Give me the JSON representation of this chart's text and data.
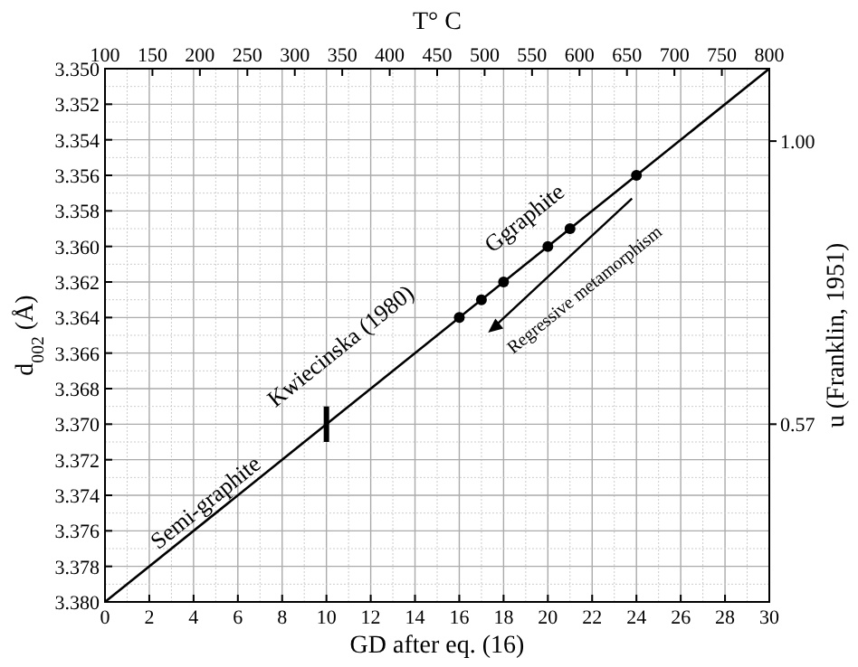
{
  "chart_data": {
    "type": "line",
    "xlabel": "GD after eq. (16)",
    "ylabel": "d$_{002}$ (Å)",
    "y2label": "u (Franklin, 1951)",
    "x2label": "T° C",
    "xlim": [
      0,
      30
    ],
    "xticks": [
      0,
      2,
      4,
      6,
      8,
      10,
      12,
      14,
      16,
      18,
      20,
      22,
      24,
      26,
      28,
      30
    ],
    "ylim": [
      3.38,
      3.35
    ],
    "yticks": [
      {
        "value": 3.35,
        "label": "3.350"
      },
      {
        "value": 3.352,
        "label": "3.352"
      },
      {
        "value": 3.354,
        "label": "3.354"
      },
      {
        "value": 3.356,
        "label": "3.356"
      },
      {
        "value": 3.358,
        "label": "3.358"
      },
      {
        "value": 3.36,
        "label": "3.360"
      },
      {
        "value": 3.362,
        "label": "3.362"
      },
      {
        "value": 3.364,
        "label": "3.364"
      },
      {
        "value": 3.366,
        "label": "3.366"
      },
      {
        "value": 3.368,
        "label": "3.368"
      },
      {
        "value": 3.37,
        "label": "3.370"
      },
      {
        "value": 3.372,
        "label": "3.372"
      },
      {
        "value": 3.374,
        "label": "3.374"
      },
      {
        "value": 3.376,
        "label": "3.376"
      },
      {
        "value": 3.378,
        "label": "3.378"
      },
      {
        "value": 3.38,
        "label": "3.380"
      }
    ],
    "x2lim": [
      100,
      800
    ],
    "x2ticks": [
      100,
      150,
      200,
      250,
      300,
      350,
      400,
      450,
      500,
      550,
      600,
      650,
      700,
      750,
      800
    ],
    "y2lim": [
      0.3,
      1.11
    ],
    "y2ticks": [
      {
        "value": 1.0,
        "label": "1.00"
      },
      {
        "value": 0.57,
        "label": "0.57"
      }
    ],
    "grid": true,
    "series": [
      {
        "color": "#000000",
        "x": [
          0,
          30
        ],
        "values": [
          3.38,
          3.35
        ],
        "marker": "none"
      },
      {
        "type": "scatter",
        "color": "#000000",
        "x": [
          16,
          17,
          18,
          20,
          21,
          24
        ],
        "values": [
          3.364,
          3.363,
          3.362,
          3.36,
          3.359,
          3.356
        ],
        "marker": "circle"
      },
      {
        "color": "#000000",
        "x": [
          10,
          10
        ],
        "values": [
          3.369,
          3.371
        ],
        "marker": "none"
      }
    ],
    "annotations": [
      "Semi-graphite",
      "Kwiecinska (1980)",
      "Ggraphite",
      "Regressive metamorphism"
    ]
  }
}
